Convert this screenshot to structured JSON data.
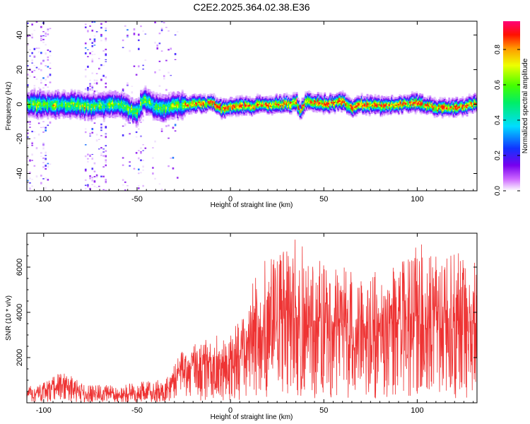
{
  "title": "C2E2.2025.364.02.38.E36",
  "colors": {
    "signal_line": "#ee3333",
    "axis": "#000000",
    "background": "#ffffff"
  },
  "chart_data": [
    {
      "type": "heatmap",
      "name": "spectrogram",
      "title": "C2E2.2025.364.02.38.E36",
      "xlabel": "Height of straight line (km)",
      "ylabel": "Frequency (Hz)",
      "xlim": [
        -109,
        132
      ],
      "ylim": [
        -50,
        48
      ],
      "xticks": [
        -100,
        -50,
        0,
        50,
        100
      ],
      "yticks": [
        -40,
        -20,
        0,
        20,
        40
      ],
      "ridge": {
        "description": "Dominant energy band following center frequency versus height",
        "x": [
          -109,
          -90,
          -75,
          -60,
          -50,
          -47,
          -40,
          -30,
          -20,
          -10,
          -5,
          0,
          10,
          20,
          30,
          35,
          37,
          40,
          50,
          55,
          60,
          65,
          70,
          80,
          90,
          100,
          110,
          120,
          132
        ],
        "center_hz": [
          0,
          0,
          -1,
          0,
          -5,
          3,
          -2,
          -1,
          0,
          1,
          -3,
          -1,
          -1,
          0,
          0,
          1,
          -4,
          2,
          0,
          1,
          2,
          -2,
          0,
          -1,
          0,
          1,
          -2,
          -2,
          1
        ]
      },
      "colorbar": {
        "label": "Normalized spectral amplitude",
        "range": [
          0.0,
          0.96
        ],
        "ticks": [
          0.0,
          0.2,
          0.4,
          0.6,
          0.8
        ],
        "tick_labels": [
          "0.0",
          "0.2",
          "0.4",
          "0.6",
          "0.8"
        ]
      }
    },
    {
      "type": "line",
      "name": "snr",
      "title": "",
      "xlabel": "Height of straight line (km)",
      "ylabel": "SNR (10 * v/v)",
      "xlim": [
        -109,
        132
      ],
      "ylim": [
        0,
        7500
      ],
      "xticks": [
        -100,
        -50,
        0,
        50,
        100
      ],
      "yticks": [
        2000,
        4000,
        6000
      ],
      "envelope": {
        "x": [
          -109,
          -100,
          -95,
          -90,
          -85,
          -80,
          -75,
          -70,
          -60,
          -50,
          -40,
          -32,
          -28,
          -22,
          -15,
          -10,
          -5,
          0,
          5,
          8,
          10,
          12,
          15,
          20,
          25,
          30,
          35,
          40,
          45,
          50,
          55,
          60,
          65,
          70,
          75,
          80,
          85,
          90,
          95,
          100,
          105,
          110,
          115,
          120,
          125,
          132
        ],
        "mean": [
          300,
          500,
          700,
          800,
          700,
          500,
          400,
          400,
          400,
          450,
          550,
          700,
          1300,
          1600,
          1700,
          1900,
          2000,
          2100,
          2300,
          2400,
          3200,
          3400,
          3300,
          3400,
          3500,
          3600,
          3600,
          3800,
          3600,
          3500,
          3600,
          3500,
          3600,
          3500,
          3500,
          3600,
          3500,
          3600,
          3700,
          3700,
          3600,
          3600,
          3500,
          3600,
          3600,
          3600
        ],
        "max": [
          700,
          900,
          1200,
          1400,
          1200,
          900,
          800,
          800,
          800,
          900,
          1000,
          1300,
          2200,
          2600,
          2800,
          2900,
          3200,
          3300,
          3600,
          3800,
          5800,
          6000,
          5600,
          6600,
          7000,
          7200,
          7300,
          7000,
          6300,
          6500,
          6200,
          6000,
          5900,
          6100,
          6000,
          5900,
          6000,
          6200,
          6900,
          7300,
          6700,
          6500,
          6600,
          6700,
          6600,
          6500
        ]
      }
    }
  ]
}
